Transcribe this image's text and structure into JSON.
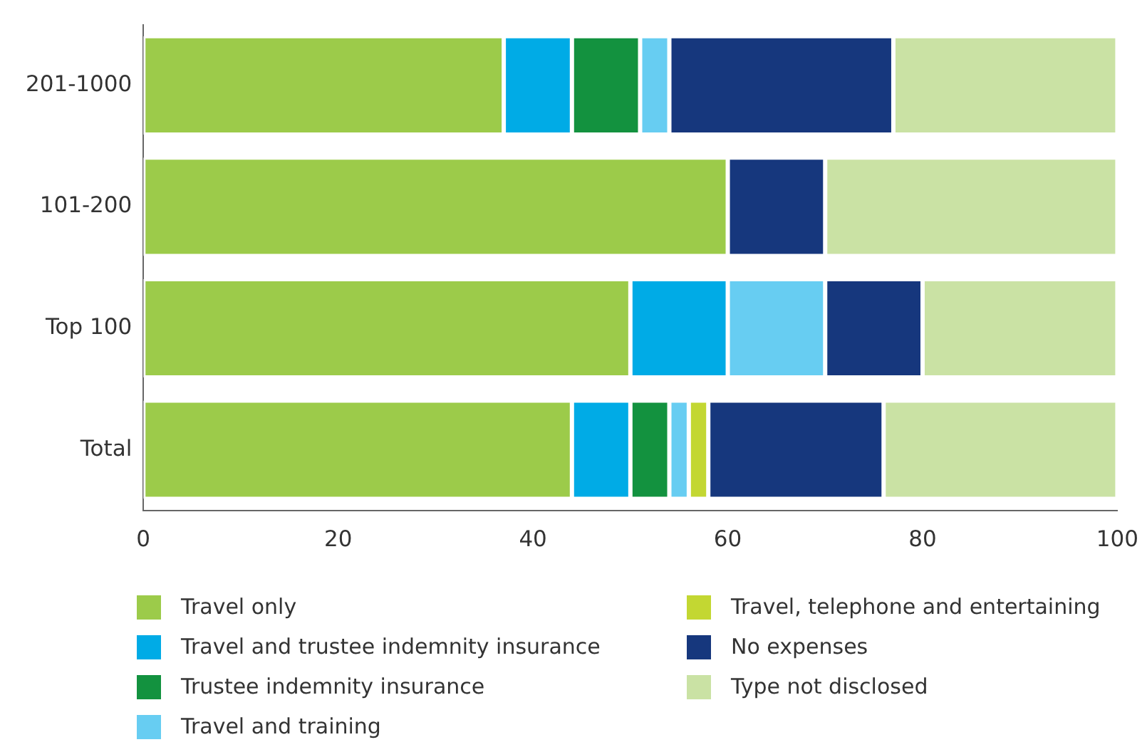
{
  "chart_data": {
    "type": "bar",
    "orientation": "horizontal",
    "stacked": true,
    "categories": [
      "201-1000",
      "101-200",
      "Top 100",
      "Total"
    ],
    "series": [
      {
        "name": "Travel only",
        "color": "#9ccb4a",
        "values": [
          37,
          60,
          50,
          44
        ]
      },
      {
        "name": "Travel and trustee indemnity insurance",
        "color": "#00abe6",
        "values": [
          7,
          0,
          10,
          6
        ]
      },
      {
        "name": "Trustee indemnity insurance",
        "color": "#13923f",
        "values": [
          7,
          0,
          0,
          4
        ]
      },
      {
        "name": "Travel and training",
        "color": "#67cdf2",
        "values": [
          3,
          0,
          10,
          2
        ]
      },
      {
        "name": "Travel, telephone and entertaining",
        "color": "#c3d732",
        "values": [
          0,
          0,
          0,
          2
        ]
      },
      {
        "name": "No expenses",
        "color": "#16377d",
        "values": [
          23,
          10,
          10,
          18
        ]
      },
      {
        "name": "Type not disclosed",
        "color": "#cae2a4",
        "values": [
          23,
          30,
          20,
          24
        ]
      }
    ],
    "xlim": [
      0,
      100
    ],
    "xticks": [
      0,
      20,
      40,
      60,
      80,
      100
    ],
    "grid": false,
    "legend": "bottom"
  }
}
